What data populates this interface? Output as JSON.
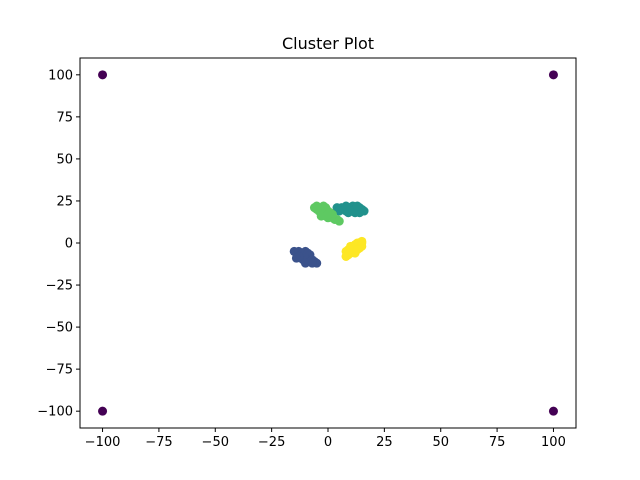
{
  "chart_data": {
    "type": "scatter",
    "title": "Cluster Plot",
    "xlabel": "",
    "ylabel": "",
    "xlim": [
      -110,
      110
    ],
    "ylim": [
      -110,
      110
    ],
    "xticks": [
      -100,
      -75,
      -50,
      -25,
      0,
      25,
      50,
      75,
      100
    ],
    "yticks": [
      -100,
      -75,
      -50,
      -25,
      0,
      25,
      50,
      75,
      100
    ],
    "grid": false,
    "colors": {
      "outlier": "#440154",
      "dark_blue": "#3b528b",
      "teal": "#21918c",
      "green": "#5ec962",
      "yellow": "#fde725"
    },
    "series": [
      {
        "color_key": "outlier",
        "points": [
          [
            -100,
            100
          ],
          [
            100,
            100
          ],
          [
            -100,
            -100
          ],
          [
            100,
            -100
          ]
        ]
      },
      {
        "color_key": "dark_blue",
        "points": [
          [
            -15,
            -5
          ],
          [
            -14,
            -6
          ],
          [
            -13,
            -5
          ],
          [
            -12,
            -7
          ],
          [
            -11,
            -6
          ],
          [
            -10,
            -5
          ],
          [
            -9,
            -6
          ],
          [
            -8,
            -7
          ],
          [
            -12,
            -9
          ],
          [
            -11,
            -10
          ],
          [
            -10,
            -9
          ],
          [
            -9,
            -10
          ],
          [
            -8,
            -11
          ],
          [
            -7,
            -10
          ],
          [
            -6,
            -11
          ],
          [
            -5,
            -12
          ],
          [
            -13,
            -8
          ],
          [
            -14,
            -9
          ],
          [
            -10,
            -12
          ],
          [
            -7,
            -12
          ]
        ]
      },
      {
        "color_key": "teal",
        "points": [
          [
            4,
            21
          ],
          [
            5,
            20
          ],
          [
            6,
            21
          ],
          [
            7,
            20
          ],
          [
            8,
            19
          ],
          [
            9,
            20
          ],
          [
            10,
            21
          ],
          [
            11,
            22
          ],
          [
            12,
            20
          ],
          [
            13,
            19
          ],
          [
            14,
            21
          ],
          [
            15,
            20
          ],
          [
            16,
            19
          ],
          [
            5,
            19
          ],
          [
            9,
            18
          ],
          [
            12,
            18
          ],
          [
            14,
            18
          ],
          [
            11,
            19
          ],
          [
            13,
            22
          ],
          [
            8,
            22
          ]
        ]
      },
      {
        "color_key": "green",
        "points": [
          [
            -6,
            21
          ],
          [
            -5,
            20
          ],
          [
            -4,
            19
          ],
          [
            -3,
            20
          ],
          [
            -2,
            22
          ],
          [
            -1,
            21
          ],
          [
            0,
            19
          ],
          [
            1,
            18
          ],
          [
            -2,
            17
          ],
          [
            -1,
            16
          ],
          [
            0,
            15
          ],
          [
            1,
            16
          ],
          [
            2,
            15
          ],
          [
            3,
            14
          ],
          [
            4,
            14
          ],
          [
            -3,
            16
          ],
          [
            2,
            17
          ],
          [
            5,
            13
          ],
          [
            -5,
            22
          ],
          [
            0,
            17
          ]
        ]
      },
      {
        "color_key": "yellow",
        "points": [
          [
            8,
            -5
          ],
          [
            9,
            -4
          ],
          [
            10,
            -6
          ],
          [
            11,
            -3
          ],
          [
            12,
            -5
          ],
          [
            13,
            -2
          ],
          [
            14,
            -1
          ],
          [
            15,
            0
          ],
          [
            14,
            -3
          ],
          [
            13,
            0
          ],
          [
            12,
            -1
          ],
          [
            11,
            -4
          ],
          [
            10,
            -2
          ],
          [
            9,
            -7
          ],
          [
            8,
            -8
          ],
          [
            15,
            -2
          ],
          [
            12,
            -6
          ],
          [
            10,
            -4
          ],
          [
            13,
            -4
          ],
          [
            15,
            1
          ]
        ]
      }
    ]
  }
}
